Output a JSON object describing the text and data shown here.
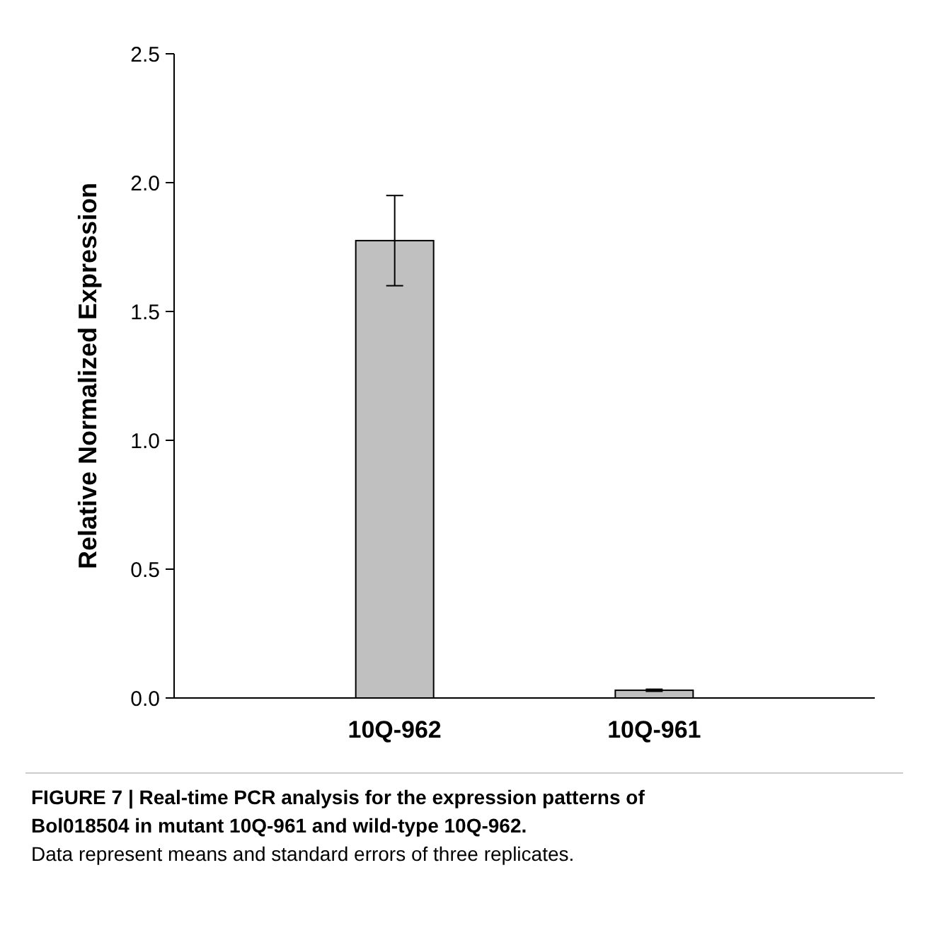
{
  "chart_data": {
    "type": "bar",
    "title": "FIGURE 7 | Real-time PCR analysis for the expression patterns of Bol018504 in mutant 10Q-961 and wild-type 10Q-962.",
    "annotations": [
      "Data represent means and standard errors of three replicates."
    ],
    "ylabel": "Relative Normalized Expression",
    "categories": [
      "10Q-962",
      "10Q-961"
    ],
    "values": [
      1.775,
      0.03
    ],
    "errors": [
      0.175,
      0.004
    ],
    "color": "#c0c0c0",
    "ylim": [
      0,
      2.5
    ],
    "yticks": [
      {
        "value": 0,
        "label": "0.0"
      },
      {
        "value": 0.5,
        "label": "0.5"
      },
      {
        "value": 1,
        "label": "1.0"
      },
      {
        "value": 1.5,
        "label": "1.5"
      },
      {
        "value": 2,
        "label": "2.0"
      },
      {
        "value": 2.5,
        "label": "2.5"
      }
    ],
    "grid": false
  }
}
